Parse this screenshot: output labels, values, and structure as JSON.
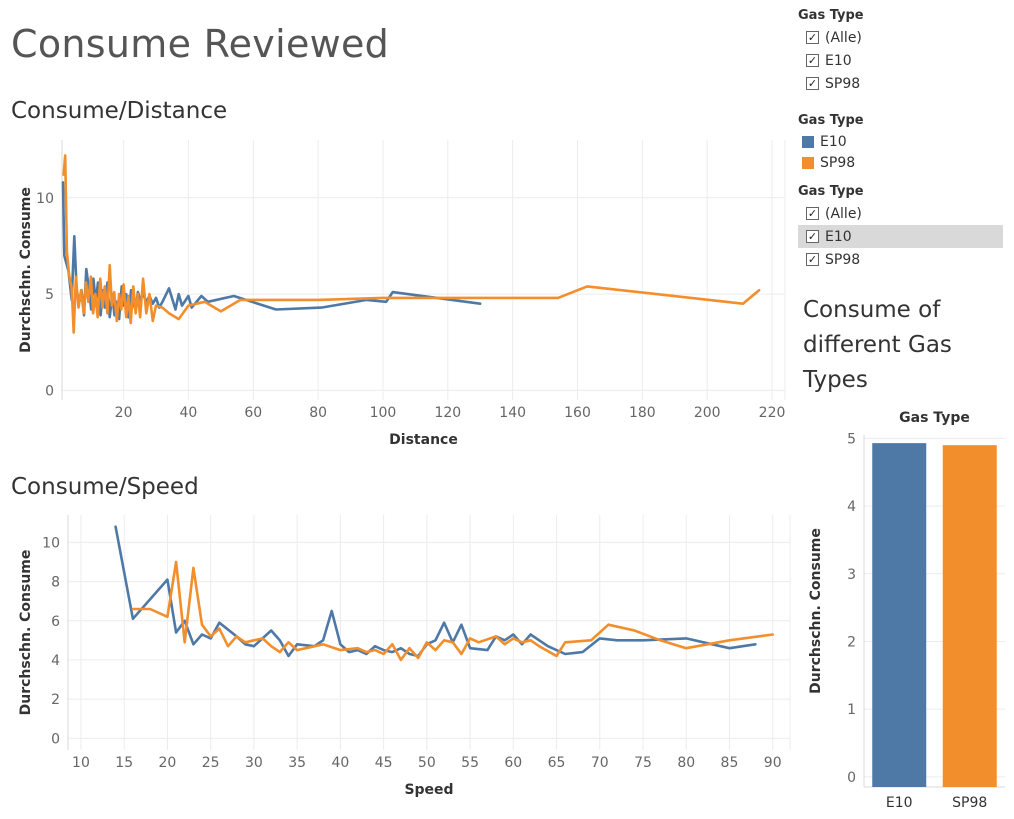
{
  "page": {
    "title": "Consume Reviewed"
  },
  "colors": {
    "E10": "#4e79a7",
    "SP98": "#f28e2b"
  },
  "filters": [
    {
      "title": "Gas Type",
      "items": [
        {
          "label": "(Alle)"
        },
        {
          "label": "E10"
        },
        {
          "label": "SP98"
        }
      ]
    },
    {
      "title": "Gas Type",
      "items": [
        {
          "label": "(Alle)"
        },
        {
          "label": "E10"
        },
        {
          "label": "SP98"
        }
      ]
    }
  ],
  "legend": {
    "title": "Gas Type",
    "items": [
      {
        "label": "E10",
        "color": "#4e79a7"
      },
      {
        "label": "SP98",
        "color": "#f28e2b"
      }
    ]
  },
  "check_glyph": "✓",
  "chart_data": [
    {
      "id": "distance",
      "type": "line",
      "title": "Consume/Distance",
      "xlabel": "Distance",
      "ylabel": "Durchschn. Consume",
      "xlim": [
        1,
        224
      ],
      "ylim": [
        -0.5,
        13
      ],
      "xticks": [
        20,
        40,
        60,
        80,
        100,
        120,
        140,
        160,
        180,
        200,
        220
      ],
      "yticks": [
        0,
        5,
        10
      ],
      "grid": true,
      "series": [
        {
          "name": "E10",
          "points": [
            [
              1.3,
              10.8
            ],
            [
              1.7,
              7.0
            ],
            [
              3.0,
              6.2
            ],
            [
              4.0,
              4.7
            ],
            [
              4.8,
              8.0
            ],
            [
              5.5,
              5.3
            ],
            [
              6.2,
              4.5
            ],
            [
              7.0,
              5.2
            ],
            [
              7.8,
              3.9
            ],
            [
              8.5,
              6.3
            ],
            [
              9.2,
              5.4
            ],
            [
              10.0,
              4.2
            ],
            [
              10.7,
              5.8
            ],
            [
              11.4,
              4.6
            ],
            [
              12.1,
              5.6
            ],
            [
              12.9,
              3.9
            ],
            [
              13.6,
              5.2
            ],
            [
              14.3,
              4.3
            ],
            [
              15.0,
              5.6
            ],
            [
              15.7,
              3.8
            ],
            [
              16.5,
              5.0
            ],
            [
              17.2,
              3.9
            ],
            [
              17.9,
              4.6
            ],
            [
              18.6,
              3.7
            ],
            [
              19.4,
              5.4
            ],
            [
              20.1,
              4.4
            ],
            [
              20.8,
              5.0
            ],
            [
              21.5,
              3.8
            ],
            [
              22.3,
              5.2
            ],
            [
              23.0,
              4.5
            ],
            [
              23.7,
              4.2
            ],
            [
              24.4,
              5.1
            ],
            [
              25.1,
              4.7
            ],
            [
              26.0,
              5.0
            ],
            [
              27.0,
              4.6
            ],
            [
              28.0,
              4.9
            ],
            [
              29.0,
              4.5
            ],
            [
              30.0,
              4.8
            ],
            [
              31.0,
              4.3
            ],
            [
              32.0,
              4.6
            ],
            [
              34.0,
              5.3
            ],
            [
              36.0,
              4.2
            ],
            [
              37.0,
              5.0
            ],
            [
              38.0,
              4.4
            ],
            [
              40.0,
              4.9
            ],
            [
              41.0,
              4.3
            ],
            [
              44.0,
              4.9
            ],
            [
              46.0,
              4.6
            ],
            [
              54.0,
              4.9
            ],
            [
              67.0,
              4.2
            ],
            [
              81.0,
              4.3
            ],
            [
              95.0,
              4.7
            ],
            [
              101.0,
              4.6
            ],
            [
              103.0,
              5.1
            ],
            [
              130.0,
              4.5
            ]
          ]
        },
        {
          "name": "SP98",
          "points": [
            [
              1.5,
              11.2
            ],
            [
              2.0,
              12.2
            ],
            [
              2.5,
              7.2
            ],
            [
              3.2,
              6.0
            ],
            [
              4.0,
              5.3
            ],
            [
              4.6,
              3.0
            ],
            [
              5.3,
              5.9
            ],
            [
              6.1,
              4.3
            ],
            [
              6.9,
              5.2
            ],
            [
              7.7,
              4.0
            ],
            [
              8.4,
              5.6
            ],
            [
              9.1,
              4.6
            ],
            [
              9.9,
              5.9
            ],
            [
              10.6,
              4.0
            ],
            [
              11.3,
              5.0
            ],
            [
              12.0,
              3.8
            ],
            [
              12.8,
              5.8
            ],
            [
              13.5,
              4.3
            ],
            [
              14.2,
              5.4
            ],
            [
              15.0,
              4.0
            ],
            [
              15.7,
              6.5
            ],
            [
              16.4,
              4.4
            ],
            [
              17.1,
              5.1
            ],
            [
              17.9,
              3.6
            ],
            [
              18.6,
              5.0
            ],
            [
              19.3,
              4.2
            ],
            [
              20.0,
              5.5
            ],
            [
              20.8,
              3.8
            ],
            [
              21.5,
              4.9
            ],
            [
              22.2,
              3.5
            ],
            [
              23.0,
              5.4
            ],
            [
              23.7,
              4.0
            ],
            [
              24.4,
              5.0
            ],
            [
              25.1,
              3.8
            ],
            [
              26.0,
              5.8
            ],
            [
              27.0,
              4.0
            ],
            [
              28.0,
              5.0
            ],
            [
              29.0,
              3.6
            ],
            [
              30.0,
              4.4
            ],
            [
              32.0,
              4.3
            ],
            [
              34.0,
              4.0
            ],
            [
              37.0,
              3.7
            ],
            [
              40.0,
              4.4
            ],
            [
              45.0,
              4.6
            ],
            [
              50.0,
              4.1
            ],
            [
              56.0,
              4.7
            ],
            [
              80.0,
              4.7
            ],
            [
              100.0,
              4.8
            ],
            [
              130.0,
              4.8
            ],
            [
              154.0,
              4.8
            ],
            [
              163.0,
              5.4
            ],
            [
              211.0,
              4.5
            ],
            [
              216.0,
              5.2
            ]
          ]
        }
      ]
    },
    {
      "id": "speed",
      "type": "line",
      "title": "Consume/Speed",
      "xlabel": "Speed",
      "ylabel": "Durchschn. Consume",
      "xlim": [
        8.5,
        92
      ],
      "ylim": [
        -0.6,
        11.4
      ],
      "xticks": [
        10,
        15,
        20,
        25,
        30,
        35,
        40,
        45,
        50,
        55,
        60,
        65,
        70,
        75,
        80,
        85,
        90
      ],
      "yticks": [
        0,
        2,
        4,
        6,
        8,
        10
      ],
      "grid": true,
      "series": [
        {
          "name": "E10",
          "points": [
            [
              14,
              10.8
            ],
            [
              16,
              6.1
            ],
            [
              20,
              8.1
            ],
            [
              21,
              5.4
            ],
            [
              22,
              6.0
            ],
            [
              23,
              4.8
            ],
            [
              24,
              5.3
            ],
            [
              25,
              5.1
            ],
            [
              26,
              5.9
            ],
            [
              28,
              5.2
            ],
            [
              29,
              4.8
            ],
            [
              30,
              4.7
            ],
            [
              32,
              5.5
            ],
            [
              33,
              5.0
            ],
            [
              34,
              4.2
            ],
            [
              35,
              4.8
            ],
            [
              37,
              4.7
            ],
            [
              38,
              5.0
            ],
            [
              39,
              6.5
            ],
            [
              40,
              4.8
            ],
            [
              41,
              4.4
            ],
            [
              42,
              4.5
            ],
            [
              43,
              4.3
            ],
            [
              44,
              4.7
            ],
            [
              45,
              4.5
            ],
            [
              46,
              4.4
            ],
            [
              47,
              4.6
            ],
            [
              48,
              4.3
            ],
            [
              49,
              4.2
            ],
            [
              50,
              4.8
            ],
            [
              51,
              5.0
            ],
            [
              52,
              5.9
            ],
            [
              53,
              4.9
            ],
            [
              54,
              5.8
            ],
            [
              55,
              4.6
            ],
            [
              57,
              4.5
            ],
            [
              58,
              5.2
            ],
            [
              59,
              5.0
            ],
            [
              60,
              5.3
            ],
            [
              61,
              4.8
            ],
            [
              62,
              5.3
            ],
            [
              64,
              4.7
            ],
            [
              66,
              4.3
            ],
            [
              68,
              4.4
            ],
            [
              70,
              5.1
            ],
            [
              72,
              5.0
            ],
            [
              75,
              5.0
            ],
            [
              80,
              5.1
            ],
            [
              83,
              4.8
            ],
            [
              85,
              4.6
            ],
            [
              88,
              4.8
            ]
          ]
        },
        {
          "name": "SP98",
          "points": [
            [
              16,
              6.6
            ],
            [
              18,
              6.6
            ],
            [
              20,
              6.2
            ],
            [
              21,
              9.0
            ],
            [
              22,
              4.9
            ],
            [
              23,
              8.7
            ],
            [
              24,
              5.8
            ],
            [
              25,
              5.2
            ],
            [
              26,
              5.6
            ],
            [
              27,
              4.7
            ],
            [
              28,
              5.2
            ],
            [
              29,
              4.9
            ],
            [
              30,
              5.0
            ],
            [
              31,
              5.1
            ],
            [
              32,
              4.7
            ],
            [
              33,
              4.4
            ],
            [
              34,
              4.9
            ],
            [
              35,
              4.5
            ],
            [
              36,
              4.6
            ],
            [
              38,
              4.8
            ],
            [
              40,
              4.5
            ],
            [
              42,
              4.6
            ],
            [
              43,
              4.4
            ],
            [
              44,
              4.5
            ],
            [
              45,
              4.3
            ],
            [
              46,
              4.8
            ],
            [
              47,
              4.0
            ],
            [
              48,
              4.6
            ],
            [
              49,
              4.1
            ],
            [
              50,
              4.9
            ],
            [
              51,
              4.5
            ],
            [
              52,
              5.0
            ],
            [
              53,
              4.9
            ],
            [
              54,
              4.3
            ],
            [
              55,
              5.1
            ],
            [
              56,
              4.9
            ],
            [
              58,
              5.2
            ],
            [
              59,
              4.8
            ],
            [
              60,
              5.1
            ],
            [
              61,
              4.9
            ],
            [
              62,
              5.0
            ],
            [
              63,
              4.7
            ],
            [
              65,
              4.2
            ],
            [
              66,
              4.9
            ],
            [
              69,
              5.0
            ],
            [
              71,
              5.8
            ],
            [
              74,
              5.5
            ],
            [
              77,
              5.0
            ],
            [
              80,
              4.6
            ],
            [
              85,
              5.0
            ],
            [
              90,
              5.3
            ]
          ]
        }
      ]
    },
    {
      "id": "gastype",
      "type": "bar",
      "title": "Consume of different Gas Types",
      "header": "Gas Type",
      "ylabel": "Durchschn. Consume",
      "categories": [
        "E10",
        "SP98"
      ],
      "values": [
        4.93,
        4.9
      ],
      "ylim": [
        -0.15,
        5.05
      ],
      "yticks": [
        0,
        1,
        2,
        3,
        4,
        5
      ],
      "grid": true
    }
  ]
}
